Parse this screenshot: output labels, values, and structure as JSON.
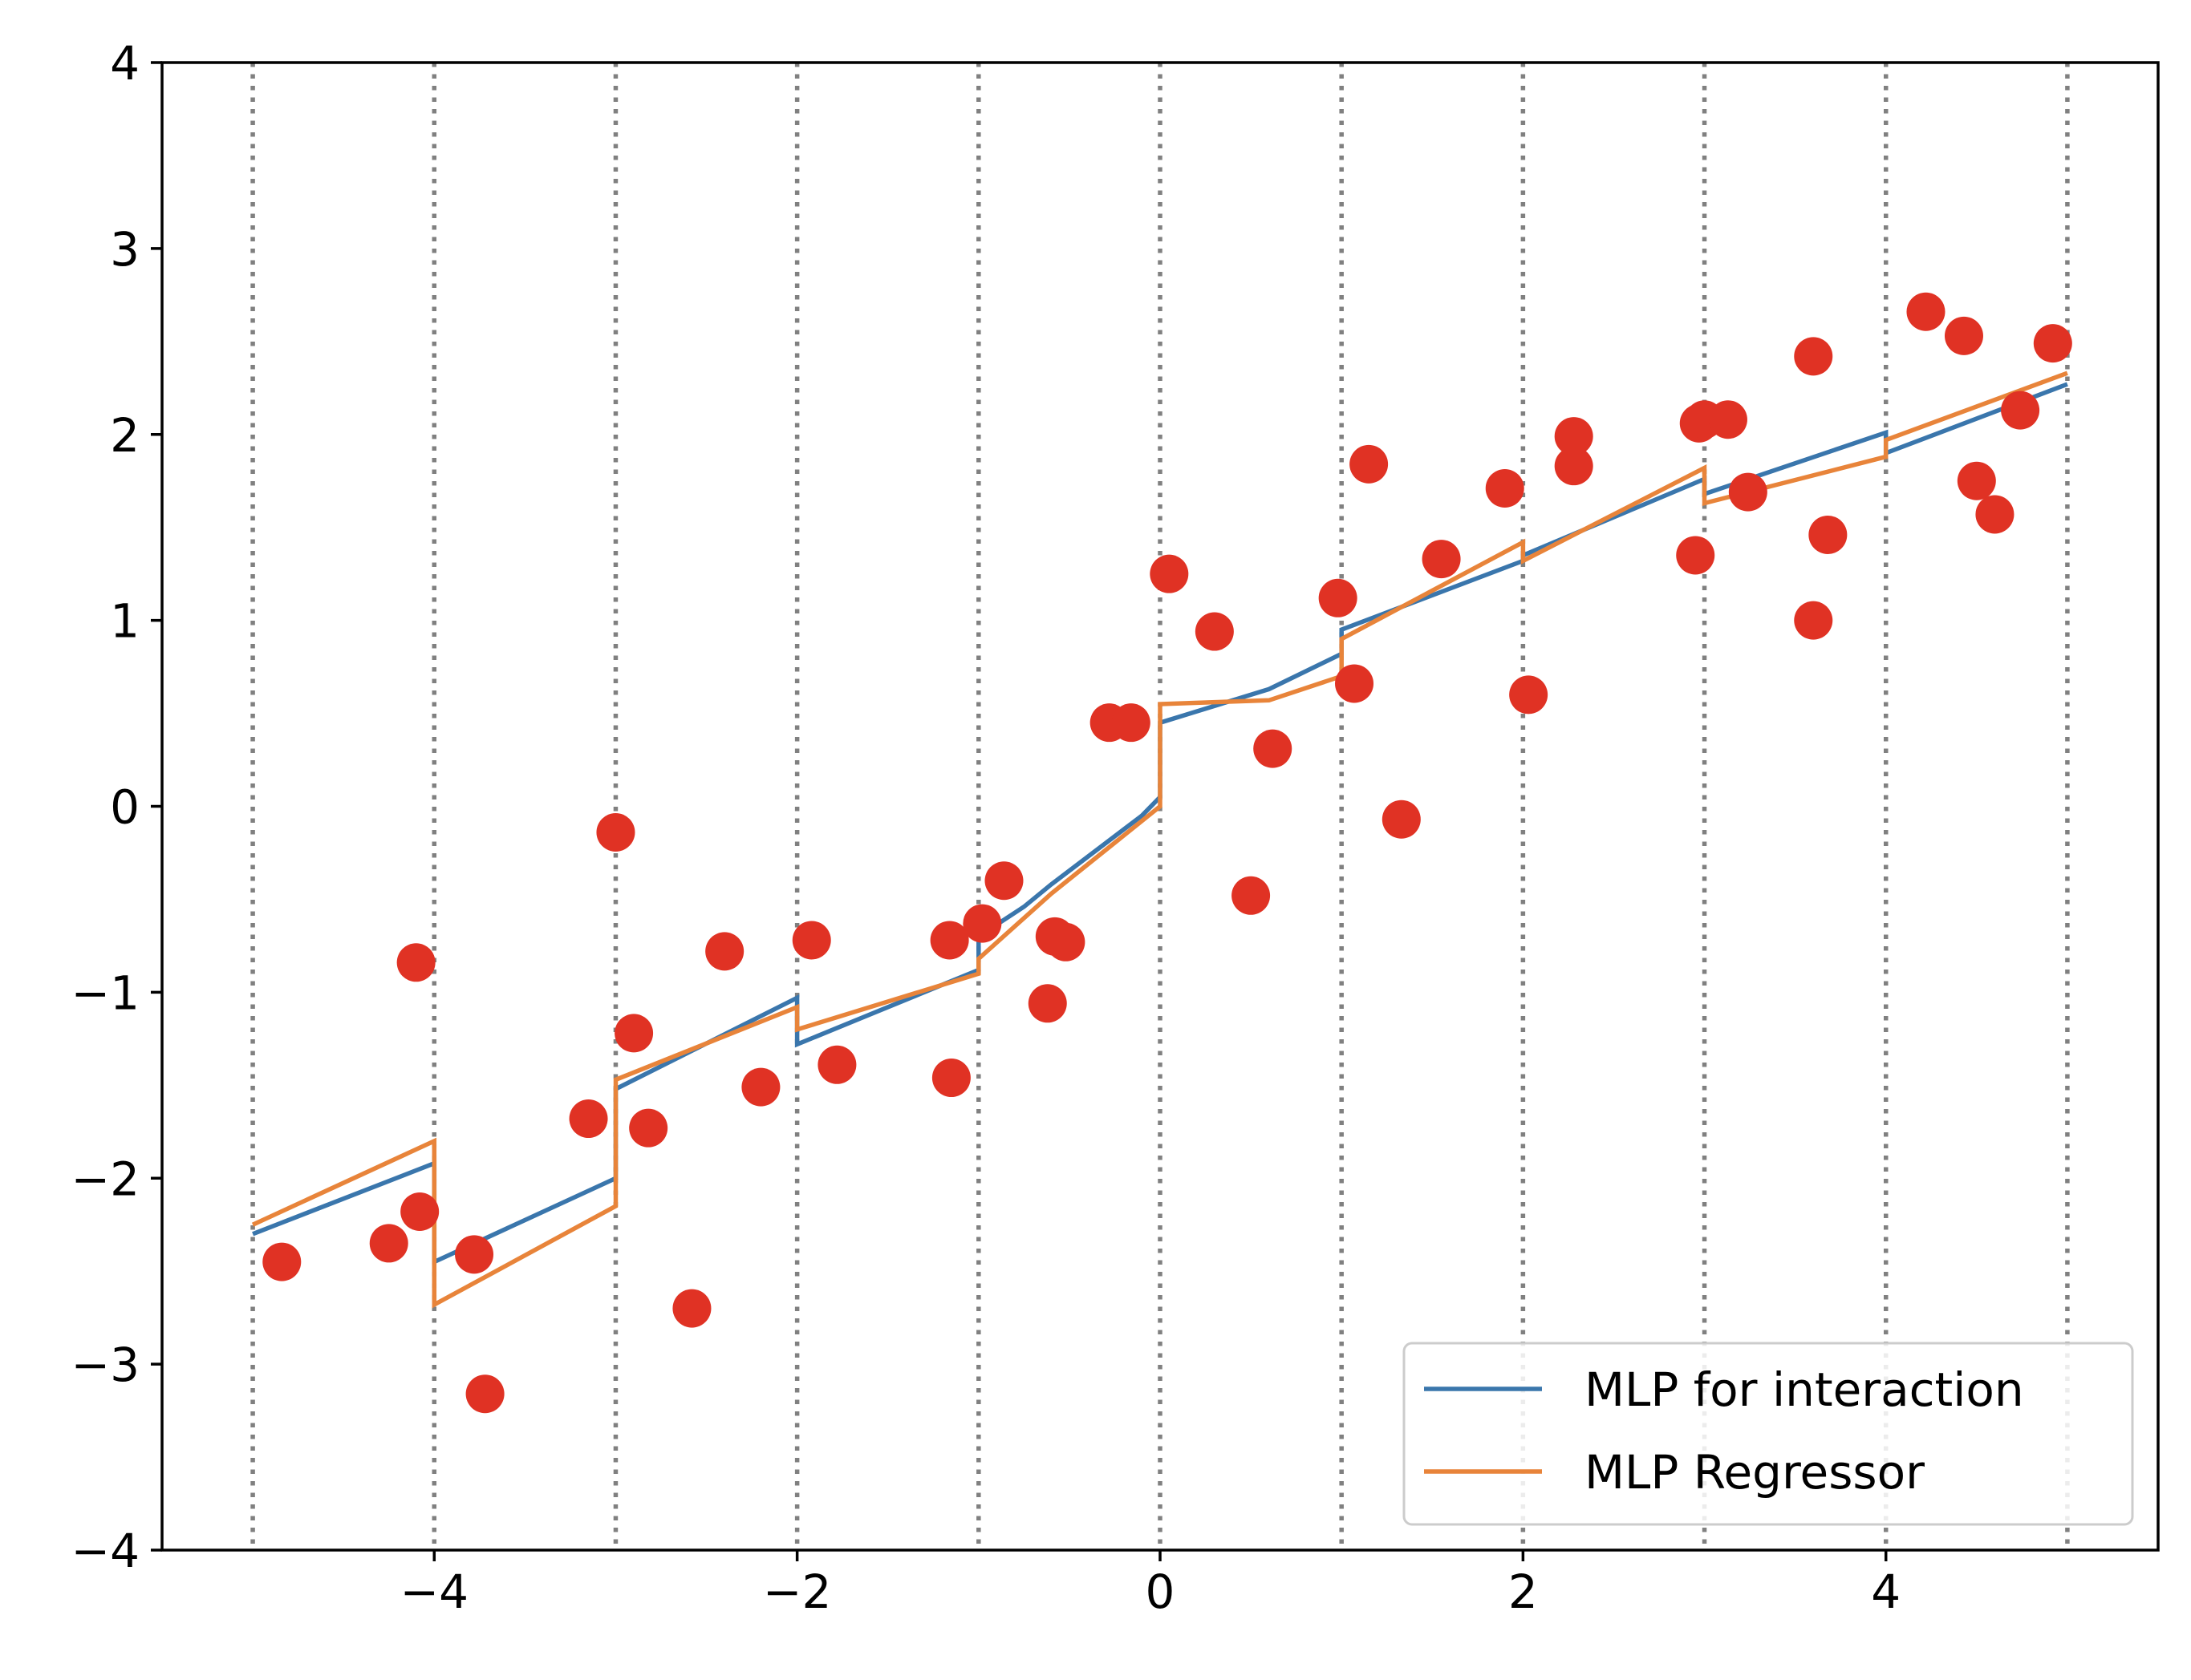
{
  "chart_data": {
    "type": "line",
    "title": "",
    "xlabel": "",
    "ylabel": "",
    "xlim": [
      -5.5,
      5.5
    ],
    "ylim": [
      -4,
      4
    ],
    "xticks": [
      -4,
      -2,
      0,
      2,
      4
    ],
    "xtick_labels": [
      "−4",
      "−2",
      "0",
      "2",
      "4"
    ],
    "yticks": [
      -4,
      -3,
      -2,
      -1,
      0,
      1,
      2,
      3,
      4
    ],
    "ytick_labels": [
      "−4",
      "−3",
      "−2",
      "−1",
      "0",
      "1",
      "2",
      "3",
      "4"
    ],
    "grid": false,
    "vlines": {
      "x": [
        -5,
        -4,
        -3,
        -2,
        -1,
        0,
        1,
        2,
        3,
        4,
        5
      ],
      "style": "dotted",
      "color": "#808080"
    },
    "legend": {
      "position": "lower right"
    },
    "series": [
      {
        "name": "MLP for interaction",
        "kind": "line",
        "color": "#3a76ac",
        "x": [
          -5,
          -4,
          -4,
          -3,
          -3,
          -2,
          -2,
          -1,
          -1,
          -0.75,
          -0.6,
          -0.1,
          0,
          0,
          0.6,
          1,
          1,
          2,
          2,
          3,
          3,
          4,
          4,
          5
        ],
        "y": [
          -2.3,
          -1.92,
          -2.45,
          -2.0,
          -1.52,
          -1.03,
          -1.28,
          -0.88,
          -0.7,
          -0.54,
          -0.42,
          -0.05,
          0.05,
          0.45,
          0.63,
          0.82,
          0.95,
          1.32,
          1.35,
          1.76,
          1.68,
          2.01,
          1.9,
          2.27
        ]
      },
      {
        "name": "MLP Regressor",
        "kind": "line",
        "color": "#e8843a",
        "x": [
          -5,
          -4,
          -4,
          -3,
          -3,
          -2,
          -2,
          -1,
          -1,
          -0.6,
          0,
          0,
          0.6,
          1,
          1,
          2,
          2,
          3,
          3,
          4,
          4,
          5
        ],
        "y": [
          -2.25,
          -1.8,
          -2.68,
          -2.15,
          -1.47,
          -1.08,
          -1.2,
          -0.9,
          -0.82,
          -0.47,
          0.0,
          0.55,
          0.57,
          0.7,
          0.9,
          1.42,
          1.32,
          1.82,
          1.63,
          1.88,
          1.97,
          2.33
        ]
      },
      {
        "name": "",
        "kind": "scatter",
        "color": "#e03224",
        "x": [
          -4.84,
          -4.25,
          -4.1,
          -4.08,
          -3.78,
          -3.72,
          -3.15,
          -3.0,
          -2.9,
          -2.82,
          -2.58,
          -2.4,
          -2.2,
          -1.92,
          -1.78,
          -1.16,
          -1.15,
          -0.98,
          -0.86,
          -0.62,
          -0.58,
          -0.52,
          -0.28,
          -0.16,
          0.05,
          0.3,
          0.5,
          0.62,
          0.98,
          1.07,
          1.15,
          1.33,
          1.55,
          1.9,
          2.03,
          2.28,
          2.28,
          2.95,
          2.97,
          3.0,
          3.13,
          3.24,
          3.6,
          3.6,
          3.68,
          4.22,
          4.43,
          4.5,
          4.6,
          4.74,
          4.92
        ],
        "y": [
          -2.45,
          -2.35,
          -0.84,
          -2.18,
          -2.41,
          -3.16,
          -1.68,
          -0.14,
          -1.22,
          -1.73,
          -2.7,
          -0.78,
          -1.51,
          -0.72,
          -1.39,
          -0.72,
          -1.46,
          -0.63,
          -0.4,
          -1.06,
          -0.7,
          -0.73,
          0.45,
          0.45,
          1.25,
          0.94,
          -0.48,
          0.31,
          1.12,
          0.66,
          1.84,
          -0.07,
          1.33,
          1.71,
          0.6,
          1.83,
          1.99,
          1.35,
          2.06,
          2.08,
          2.08,
          1.69,
          2.42,
          1.0,
          1.46,
          2.66,
          2.53,
          1.75,
          1.57,
          2.13,
          2.49
        ]
      }
    ]
  }
}
